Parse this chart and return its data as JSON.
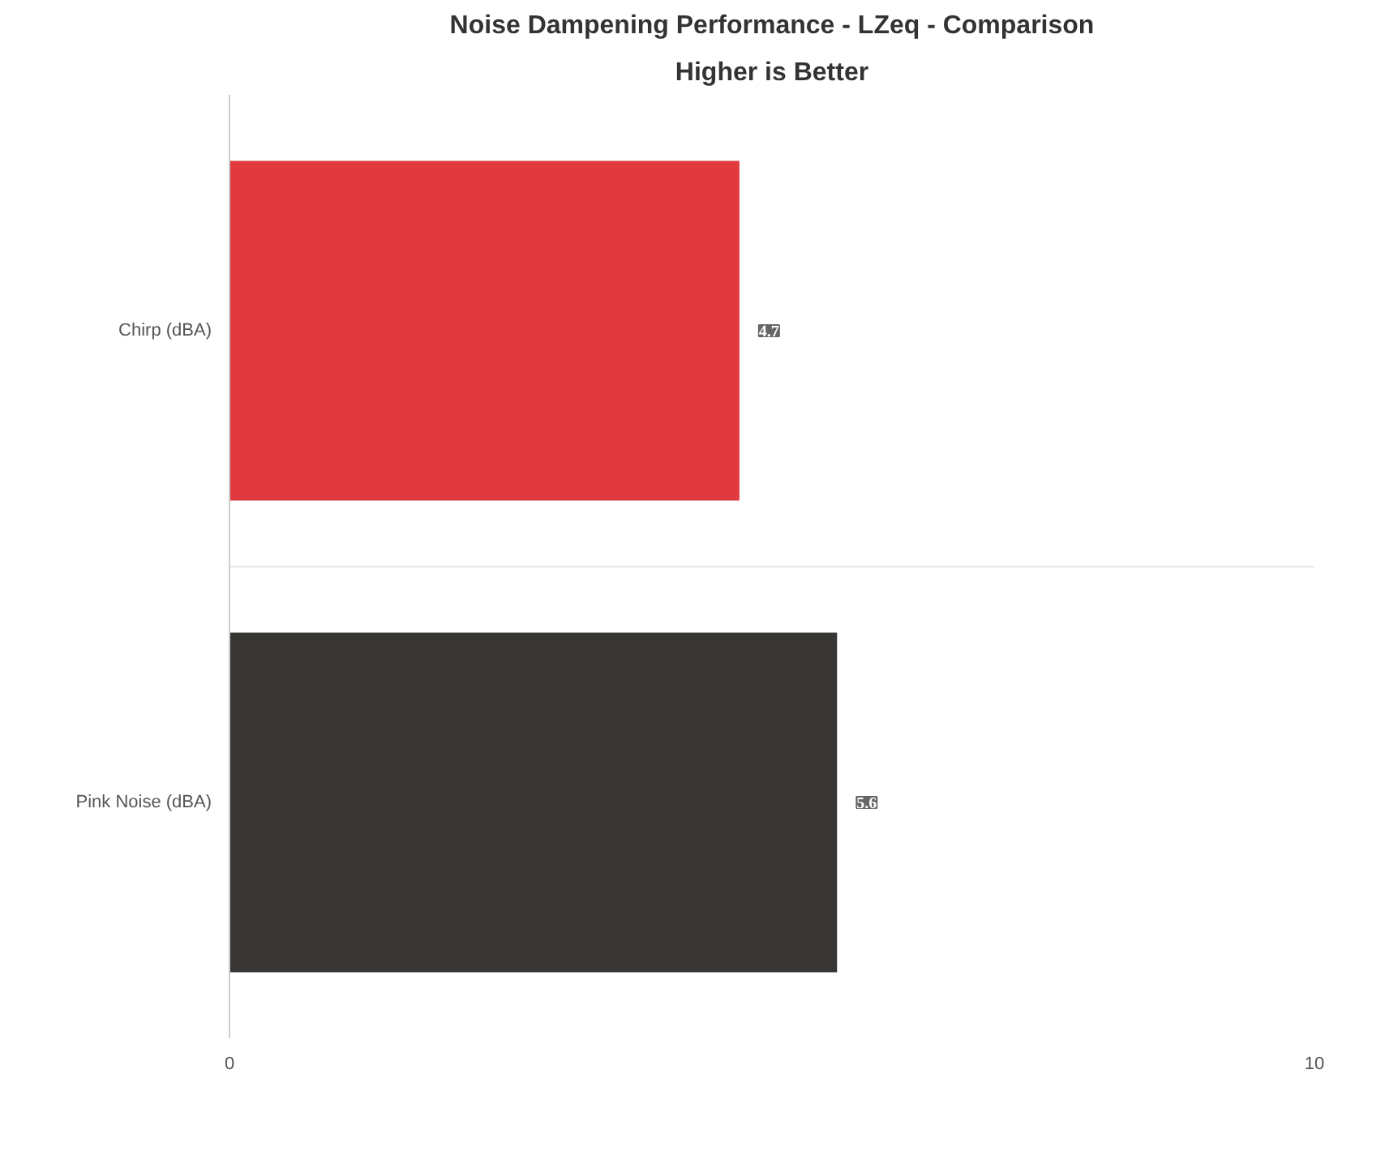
{
  "chart_data": {
    "type": "bar",
    "orientation": "horizontal",
    "title": "Noise Dampening Performance - LZeq - Comparison",
    "subtitle": "Higher is Better",
    "categories": [
      "Chirp (dBA)",
      "Pink Noise (dBA)"
    ],
    "values": [
      4.7,
      5.6
    ],
    "colors": [
      "#e0393e",
      "#373634"
    ],
    "xlim": [
      0,
      10
    ],
    "xticks": [
      0,
      10
    ],
    "grid": true,
    "data_labels": true
  }
}
